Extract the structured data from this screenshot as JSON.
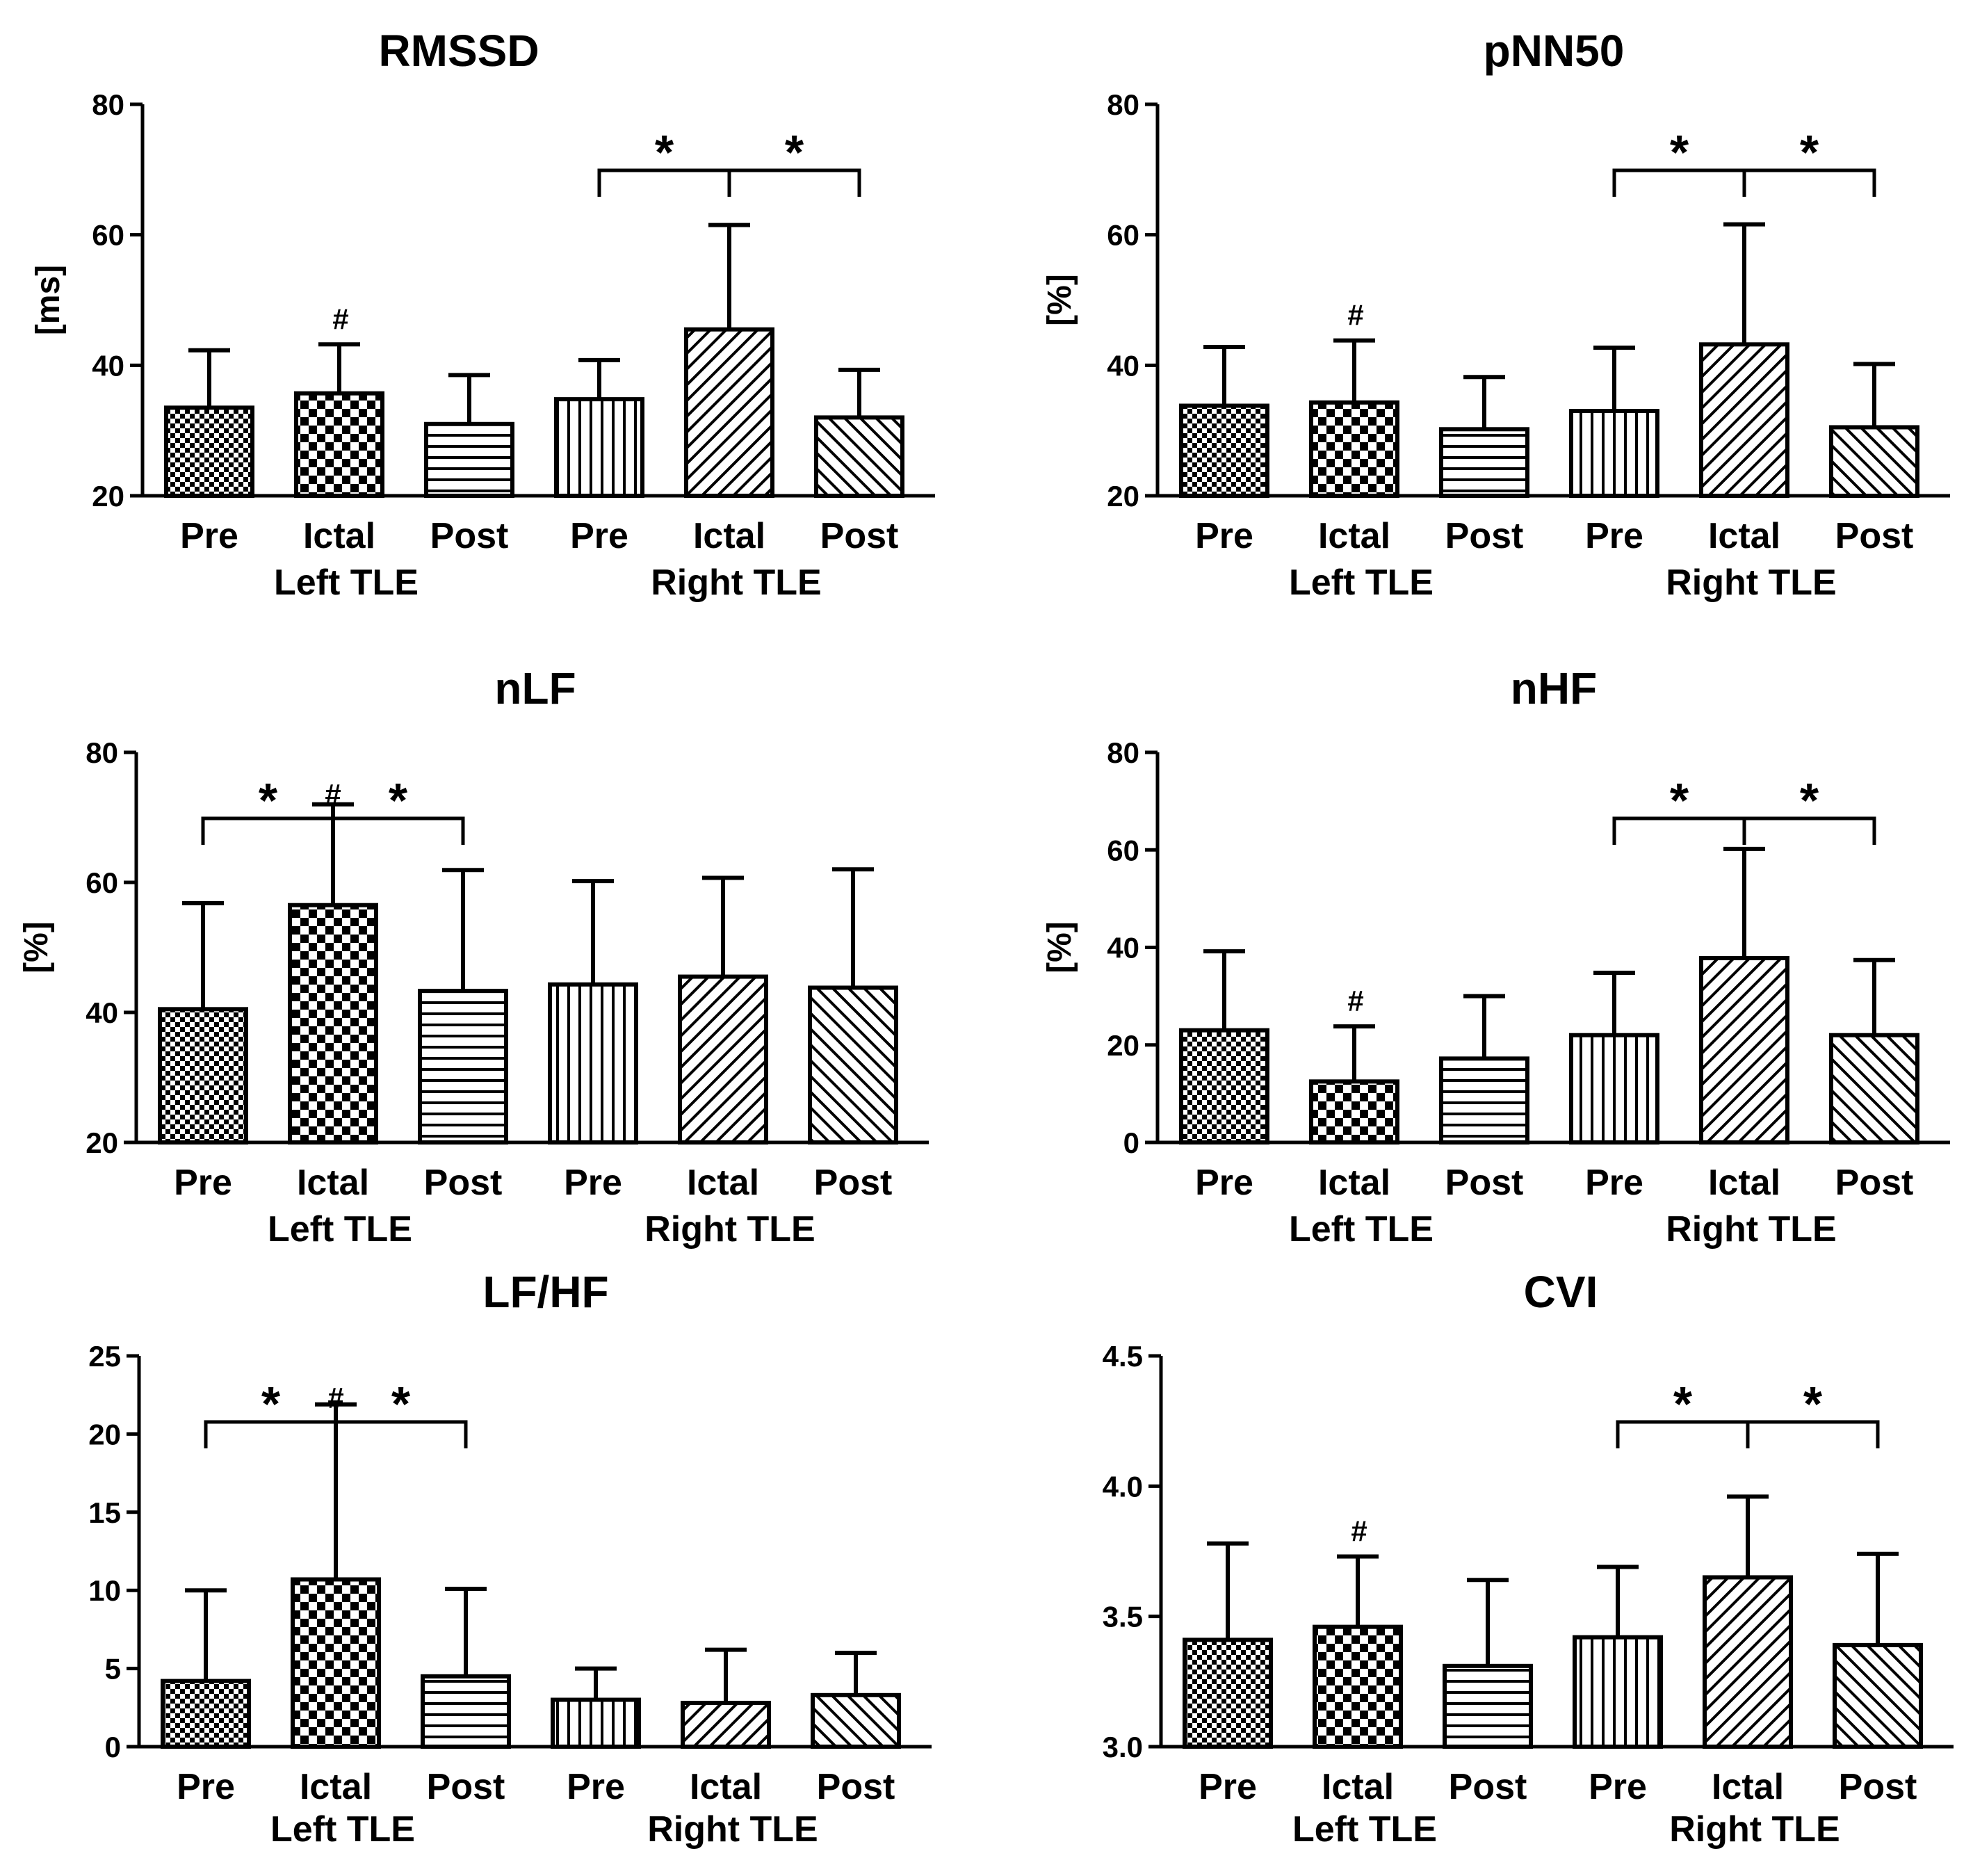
{
  "chart_data": [
    {
      "type": "bar",
      "title": "RMSSD",
      "ylabel": "[ms]",
      "ylim": [
        20,
        80
      ],
      "yticks": [
        20,
        40,
        60,
        80
      ],
      "categories": [
        "Pre",
        "Ictal",
        "Post",
        "Pre",
        "Ictal",
        "Post"
      ],
      "groups": [
        "Left TLE",
        "Right TLE"
      ],
      "values": [
        33.5,
        35.7,
        31.0,
        34.8,
        45.5,
        32.0
      ],
      "errors": [
        8.8,
        7.5,
        7.5,
        6.0,
        16.0,
        7.3
      ],
      "significance": [
        {
          "from": 3,
          "mid": 4,
          "to": 5,
          "marks": [
            "*",
            "*"
          ]
        }
      ],
      "bar_marks": [
        {
          "index": 1,
          "label": "#"
        }
      ]
    },
    {
      "type": "bar",
      "title": "pNN50",
      "ylabel": "[%]",
      "ylim": [
        20,
        80
      ],
      "yticks": [
        20,
        40,
        60,
        80
      ],
      "categories": [
        "Pre",
        "Ictal",
        "Post",
        "Pre",
        "Ictal",
        "Post"
      ],
      "groups": [
        "Left TLE",
        "Right TLE"
      ],
      "values": [
        33.8,
        34.3,
        30.2,
        33.0,
        43.2,
        30.5
      ],
      "errors": [
        9.0,
        9.5,
        8.0,
        9.7,
        18.4,
        9.7
      ],
      "significance": [
        {
          "from": 3,
          "mid": 4,
          "to": 5,
          "marks": [
            "*",
            "*"
          ]
        }
      ],
      "bar_marks": [
        {
          "index": 1,
          "label": "#"
        }
      ]
    },
    {
      "type": "bar",
      "title": "nLF",
      "ylabel": "[%]",
      "ylim": [
        20,
        80
      ],
      "yticks": [
        20,
        40,
        60,
        80
      ],
      "categories": [
        "Pre",
        "Ictal",
        "Post",
        "Pre",
        "Ictal",
        "Post"
      ],
      "groups": [
        "Left TLE",
        "Right TLE"
      ],
      "values": [
        40.5,
        56.5,
        43.3,
        44.3,
        45.5,
        43.8
      ],
      "errors": [
        16.3,
        15.5,
        18.6,
        15.9,
        15.2,
        18.2
      ],
      "significance": [
        {
          "from": 0,
          "mid": 1,
          "to": 2,
          "marks": [
            "*",
            "#",
            "*"
          ]
        }
      ],
      "bar_marks": []
    },
    {
      "type": "bar",
      "title": "nHF",
      "ylabel": "[%]",
      "ylim": [
        0,
        80
      ],
      "yticks": [
        0,
        20,
        40,
        60,
        80
      ],
      "categories": [
        "Pre",
        "Ictal",
        "Post",
        "Pre",
        "Ictal",
        "Post"
      ],
      "groups": [
        "Left TLE",
        "Right TLE"
      ],
      "values": [
        23.0,
        12.5,
        17.2,
        22.0,
        37.8,
        22.0
      ],
      "errors": [
        16.2,
        11.3,
        12.8,
        12.8,
        22.4,
        15.4
      ],
      "significance": [
        {
          "from": 3,
          "mid": 4,
          "to": 5,
          "marks": [
            "*",
            "*"
          ]
        }
      ],
      "bar_marks": [
        {
          "index": 1,
          "label": "#"
        }
      ]
    },
    {
      "type": "bar",
      "title": "LF/HF",
      "ylabel": "",
      "ylim": [
        0,
        25
      ],
      "yticks": [
        0,
        5,
        10,
        15,
        20,
        25
      ],
      "categories": [
        "Pre",
        "Ictal",
        "Post",
        "Pre",
        "Ictal",
        "Post"
      ],
      "groups": [
        "Left TLE",
        "Right TLE"
      ],
      "values": [
        4.2,
        10.7,
        4.5,
        3.0,
        2.8,
        3.3
      ],
      "errors": [
        5.8,
        11.2,
        5.6,
        2.0,
        3.4,
        2.7
      ],
      "significance": [
        {
          "from": 0,
          "mid": 1,
          "to": 2,
          "marks": [
            "*",
            "#",
            "*"
          ]
        }
      ],
      "bar_marks": []
    },
    {
      "type": "bar",
      "title": "CVI",
      "ylabel": "",
      "ylim": [
        3.0,
        4.5
      ],
      "yticks": [
        "3.0",
        "3.5",
        "4.0",
        "4.5"
      ],
      "categories": [
        "Pre",
        "Ictal",
        "Post",
        "Pre",
        "Ictal",
        "Post"
      ],
      "groups": [
        "Left TLE",
        "Right TLE"
      ],
      "values": [
        3.41,
        3.46,
        3.31,
        3.42,
        3.65,
        3.39
      ],
      "errors": [
        0.37,
        0.27,
        0.33,
        0.27,
        0.31,
        0.35
      ],
      "significance": [
        {
          "from": 3,
          "mid": 4,
          "to": 5,
          "marks": [
            "*",
            "*"
          ]
        }
      ],
      "bar_marks": [
        {
          "index": 1,
          "label": "#"
        }
      ]
    }
  ]
}
